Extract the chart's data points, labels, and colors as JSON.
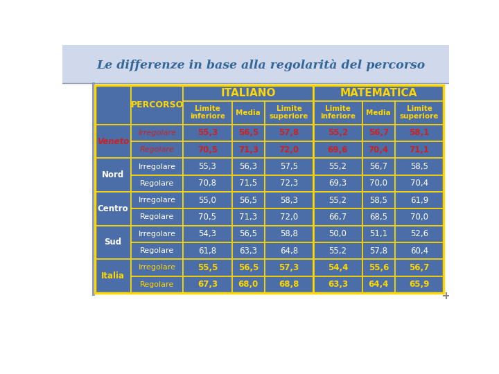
{
  "title": "Le differenze in base alla regolarità del percorso",
  "page_bg": "#FFFFFF",
  "header_bar_bg": "#C8D4E8",
  "table_bg": "#4B6EA8",
  "table_border": "#FFD700",
  "header_text": "#FFD700",
  "veneto_label_color": "#CC2222",
  "veneto_data_color": "#CC2222",
  "nord_centro_sud_label_color": "#FFFFFF",
  "nord_centro_sud_data_color": "#FFFFFF",
  "italia_label_color": "#FFD700",
  "italia_data_color": "#FFD700",
  "percorso_veneto_color": "#CC2222",
  "percorso_italia_color": "#FFD700",
  "percorso_ncs_color": "#FFFFFF",
  "title_color": "#336699",
  "sub_headers": [
    "Limite\ninferiore",
    "Media",
    "Limite\nsuperiore",
    "Limite\ninferiore",
    "Media",
    "Limite\nsuperiore"
  ],
  "row_groups": [
    "Veneto",
    "Nord",
    "Centro",
    "Sud",
    "Italia"
  ],
  "row_types": [
    "Irregolare",
    "Regolare"
  ],
  "table_data": {
    "Veneto": {
      "Irregolare": [
        55.3,
        56.5,
        57.8,
        55.2,
        56.7,
        58.1
      ],
      "Regolare": [
        70.5,
        71.3,
        72.0,
        69.6,
        70.4,
        71.1
      ]
    },
    "Nord": {
      "Irregolare": [
        55.3,
        56.3,
        57.5,
        55.2,
        56.7,
        58.5
      ],
      "Regolare": [
        70.8,
        71.5,
        72.3,
        69.3,
        70.0,
        70.4
      ]
    },
    "Centro": {
      "Irregolare": [
        55.0,
        56.5,
        58.3,
        55.2,
        58.5,
        61.9
      ],
      "Regolare": [
        70.5,
        71.3,
        72.0,
        66.7,
        68.5,
        70.0
      ]
    },
    "Sud": {
      "Irregolare": [
        54.3,
        56.5,
        58.8,
        50.0,
        51.1,
        52.6
      ],
      "Regolare": [
        61.8,
        63.3,
        64.8,
        55.2,
        57.8,
        60.4
      ]
    },
    "Italia": {
      "Irregolare": [
        55.5,
        56.5,
        57.3,
        54.4,
        55.6,
        56.7
      ],
      "Regolare": [
        67.3,
        68.0,
        68.8,
        63.3,
        64.4,
        65.9
      ]
    }
  }
}
